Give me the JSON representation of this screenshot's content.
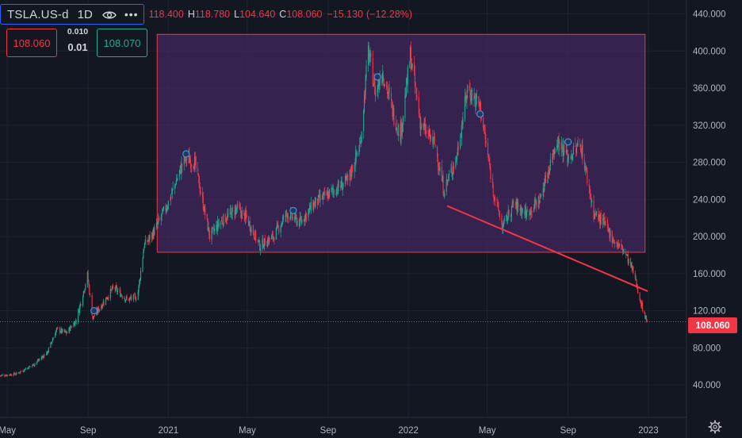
{
  "legend": {
    "symbol": "TSLA.US-d",
    "interval": "1D",
    "open": "118.400",
    "high": "118.780",
    "low": "104.640",
    "close": "108.060",
    "change": "−15.130",
    "change_pct": "(−12.28%)",
    "h_key": "H",
    "l_key": "L",
    "c_key": "C",
    "eye_icon": "eye-icon",
    "more_icon": "more-horizontal-icon"
  },
  "trade": {
    "sell_price": "108.060",
    "buy_price": "108.070",
    "spread_top": "0.010",
    "spread_bottom": "0.01"
  },
  "last_price_label": "108.060",
  "colors": {
    "background": "#131722",
    "up": "#22ab94",
    "down": "#f23645",
    "rectangle_fill": "#4a2a6a",
    "rectangle_border": "#f23645",
    "trendline": "#f23645",
    "axis_text": "#b2b5be"
  },
  "chart_data": {
    "type": "candlestick",
    "y_axis": {
      "ticks": [
        "440.000",
        "400.000",
        "360.000",
        "320.000",
        "280.000",
        "240.000",
        "200.000",
        "160.000",
        "120.000",
        "80.000",
        "40.000"
      ],
      "tick_values": [
        440,
        400,
        360,
        320,
        280,
        240,
        200,
        160,
        120,
        80,
        40
      ],
      "range": [
        5,
        455
      ]
    },
    "x_axis": {
      "ticks": [
        "May",
        "Sep",
        "2021",
        "May",
        "Sep",
        "2022",
        "May",
        "Sep",
        "2023"
      ],
      "tick_dates": [
        "2020-05-01",
        "2020-09-01",
        "2021-01-01",
        "2021-05-01",
        "2021-09-01",
        "2022-01-01",
        "2022-05-01",
        "2022-09-01",
        "2023-01-01"
      ],
      "range": [
        "2020-04-20",
        "2023-02-28"
      ]
    },
    "last_price": 108.06,
    "path": [
      [
        "2020-04-20",
        50
      ],
      [
        "2020-05-15",
        52
      ],
      [
        "2020-06-10",
        62
      ],
      [
        "2020-07-01",
        75
      ],
      [
        "2020-07-15",
        100
      ],
      [
        "2020-07-30",
        96
      ],
      [
        "2020-08-14",
        110
      ],
      [
        "2020-08-31",
        158
      ],
      [
        "2020-09-08",
        112
      ],
      [
        "2020-09-23",
        128
      ],
      [
        "2020-10-10",
        145
      ],
      [
        "2020-10-30",
        132
      ],
      [
        "2020-11-15",
        135
      ],
      [
        "2020-11-25",
        190
      ],
      [
        "2020-12-10",
        205
      ],
      [
        "2020-12-31",
        235
      ],
      [
        "2021-01-26",
        285
      ],
      [
        "2021-02-10",
        280
      ],
      [
        "2021-03-05",
        200
      ],
      [
        "2021-03-20",
        215
      ],
      [
        "2021-04-15",
        230
      ],
      [
        "2021-04-30",
        220
      ],
      [
        "2021-05-20",
        190
      ],
      [
        "2021-06-10",
        200
      ],
      [
        "2021-06-30",
        225
      ],
      [
        "2021-07-20",
        215
      ],
      [
        "2021-08-10",
        235
      ],
      [
        "2021-09-10",
        250
      ],
      [
        "2021-10-01",
        260
      ],
      [
        "2021-10-20",
        300
      ],
      [
        "2021-11-01",
        400
      ],
      [
        "2021-11-12",
        355
      ],
      [
        "2021-11-22",
        380
      ],
      [
        "2021-12-10",
        330
      ],
      [
        "2021-12-20",
        310
      ],
      [
        "2022-01-04",
        395
      ],
      [
        "2022-01-20",
        320
      ],
      [
        "2022-02-10",
        300
      ],
      [
        "2022-02-24",
        250
      ],
      [
        "2022-03-15",
        285
      ],
      [
        "2022-04-01",
        360
      ],
      [
        "2022-04-20",
        340
      ],
      [
        "2022-05-10",
        250
      ],
      [
        "2022-05-24",
        210
      ],
      [
        "2022-06-10",
        235
      ],
      [
        "2022-06-30",
        225
      ],
      [
        "2022-07-20",
        240
      ],
      [
        "2022-08-15",
        305
      ],
      [
        "2022-09-01",
        285
      ],
      [
        "2022-09-20",
        300
      ],
      [
        "2022-10-10",
        225
      ],
      [
        "2022-10-25",
        215
      ],
      [
        "2022-11-10",
        195
      ],
      [
        "2022-11-25",
        185
      ],
      [
        "2022-12-10",
        160
      ],
      [
        "2022-12-22",
        125
      ],
      [
        "2022-12-30",
        108.06
      ]
    ],
    "rectangle": {
      "start": "2020-12-15",
      "end": "2022-12-27",
      "top": 418,
      "bottom": 183
    },
    "trendline": {
      "start": [
        "2022-03-01",
        233
      ],
      "end": [
        "2022-12-31",
        141
      ]
    },
    "markers": [
      [
        "2020-09-10",
        120
      ],
      [
        "2021-01-28",
        289
      ],
      [
        "2021-07-10",
        228
      ],
      [
        "2021-11-15",
        372
      ],
      [
        "2022-04-20",
        332
      ],
      [
        "2022-09-01",
        302
      ]
    ]
  }
}
